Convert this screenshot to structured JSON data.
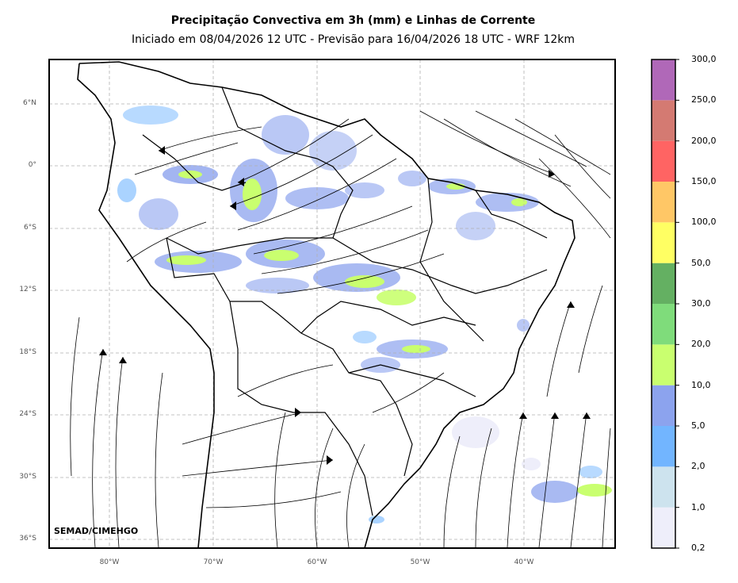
{
  "title": "Precipitação Convectiva em 3h (mm) e Linhas de Corrente",
  "subtitle": "Iniciado em 08/04/2026 12 UTC - Previsão para 16/04/2026 18 UTC - WRF 12km",
  "credit": "SEMAD/CIMEHGO",
  "lat_labels": [
    "6°N",
    "0°",
    "6°S",
    "12°S",
    "18°S",
    "24°S",
    "30°S",
    "36°S"
  ],
  "lon_labels": [
    "80°W",
    "70°W",
    "60°W",
    "50°W",
    "40°W"
  ],
  "colorbar": {
    "labels": [
      "0,2",
      "1,0",
      "2,0",
      "5,0",
      "10,0",
      "20,0",
      "30,0",
      "50,0",
      "100,0",
      "150,0",
      "200,0",
      "250,0",
      "300,0"
    ],
    "colors": [
      "#eeeefa",
      "#cde3ee",
      "#72b5ff",
      "#8ca3ee",
      "#c9ff6f",
      "#7fdc7b",
      "#64b062",
      "#ffff63",
      "#ffc766",
      "#ff6463",
      "#d47a72",
      "#b068b8"
    ]
  },
  "colors": {
    "light_rain": "#8ca3ee",
    "moderate": "#72b5ff",
    "heavy": "#c9ff6f",
    "border": "#000000",
    "grid": "#b0b0b0"
  }
}
